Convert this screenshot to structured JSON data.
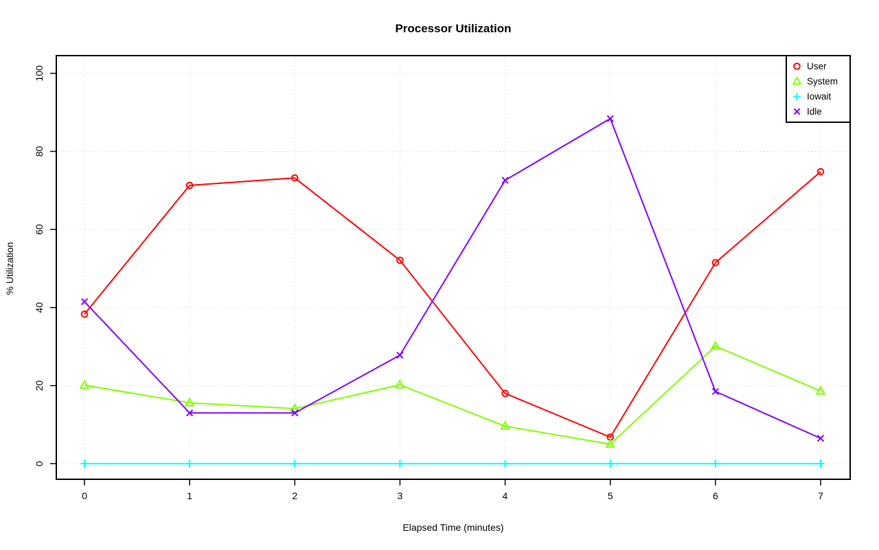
{
  "chart_data": {
    "type": "line",
    "title": "Processor Utilization",
    "xlabel": "Elapsed Time (minutes)",
    "ylabel": "% Utilization",
    "xlim": [
      0,
      7
    ],
    "ylim": [
      0,
      100
    ],
    "xticks": [
      "0",
      "1",
      "2",
      "3",
      "4",
      "5",
      "6",
      "7"
    ],
    "yticks": [
      "0",
      "20",
      "40",
      "60",
      "80",
      "100"
    ],
    "x": [
      0,
      1,
      2,
      3,
      4,
      5,
      6,
      7
    ],
    "grid": "dotted lightgray at every tick, both axes",
    "legend_position": "top-right inside plot box",
    "series": [
      {
        "name": "User",
        "color": "#FF0000",
        "marker": "circle",
        "values": [
          38.3,
          71.3,
          73.2,
          52.1,
          18.0,
          6.8,
          51.5,
          74.8
        ]
      },
      {
        "name": "System",
        "color": "#80FF00",
        "marker": "triangle",
        "values": [
          20.1,
          15.6,
          14.1,
          20.2,
          9.6,
          5.0,
          30.1,
          18.6
        ]
      },
      {
        "name": "Iowait",
        "color": "#00FFFF",
        "marker": "plus",
        "values": [
          0,
          0,
          0,
          0,
          0,
          0,
          0,
          0
        ]
      },
      {
        "name": "Idle",
        "color": "#8000FF",
        "marker": "x",
        "values": [
          41.5,
          13.0,
          13.0,
          27.8,
          72.6,
          88.4,
          18.5,
          6.5
        ]
      }
    ]
  }
}
